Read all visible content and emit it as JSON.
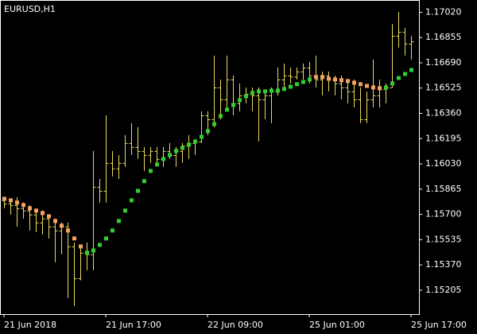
{
  "chart_data": {
    "type": "ohlc",
    "title": "EURUSD,H1",
    "categories": [
      "21 Jun 2018",
      null,
      null,
      null,
      null,
      null,
      null,
      null,
      null,
      null,
      null,
      null,
      null,
      null,
      null,
      null,
      "21 Jun 17:00",
      null,
      null,
      null,
      null,
      null,
      null,
      null,
      null,
      null,
      null,
      null,
      null,
      null,
      null,
      null,
      "22 Jun 09:00",
      null,
      null,
      null,
      null,
      null,
      null,
      null,
      null,
      null,
      null,
      null,
      null,
      null,
      null,
      null,
      "25 Jun 01:00",
      null,
      null,
      null,
      null,
      null,
      null,
      null,
      null,
      null,
      null,
      null,
      null,
      null,
      null,
      null,
      "25 Jun 17:00"
    ],
    "color": "#ead85c",
    "open": [
      1.15792,
      1.15771,
      1.15761,
      1.1574,
      1.15725,
      1.15699,
      1.15647,
      1.15673,
      1.15621,
      1.15595,
      1.15621,
      1.15491,
      1.15283,
      1.1545,
      1.1544,
      1.1588,
      1.15854,
      1.16036,
      1.16,
      1.16036,
      1.16166,
      1.1614,
      1.16114,
      1.16088,
      1.16114,
      1.16062,
      1.16114,
      1.16088,
      1.16114,
      1.1615,
      1.16166,
      1.16176,
      1.16347,
      1.16321,
      1.16529,
      1.16451,
      1.16581,
      1.16425,
      1.16477,
      1.16488,
      1.16477,
      1.16451,
      1.16477,
      1.16503,
      1.16581,
      1.16607,
      1.166,
      1.16633,
      1.16659,
      1.16607,
      1.16581,
      1.16607,
      1.16581,
      1.16555,
      1.16529,
      1.16503,
      1.16451,
      1.16321,
      1.16451,
      1.16477,
      1.16519,
      1.16529,
      1.16866,
      1.16892,
      1.16815
    ],
    "high": [
      1.15813,
      1.15802,
      1.15813,
      1.15777,
      1.15761,
      1.15725,
      1.15725,
      1.15699,
      1.15673,
      1.15647,
      1.15647,
      1.15517,
      1.15491,
      1.15517,
      1.16114,
      1.15932,
      1.16347,
      1.16114,
      1.16088,
      1.16218,
      1.16296,
      1.1627,
      1.1614,
      1.1614,
      1.1614,
      1.1614,
      1.16166,
      1.1614,
      1.16166,
      1.16218,
      1.16192,
      1.16373,
      1.16373,
      1.16737,
      1.16581,
      1.16737,
      1.16607,
      1.16555,
      1.16529,
      1.16529,
      1.16529,
      1.16503,
      1.16529,
      1.16659,
      1.16685,
      1.16659,
      1.16659,
      1.16685,
      1.16695,
      1.16737,
      1.16633,
      1.16633,
      1.16607,
      1.16607,
      1.16581,
      1.16581,
      1.16529,
      1.16503,
      1.16711,
      1.16581,
      1.16555,
      1.16944,
      1.17022,
      1.16918,
      1.16866
    ],
    "low": [
      1.1574,
      1.15699,
      1.15621,
      1.15673,
      1.15595,
      1.15585,
      1.15569,
      1.15543,
      1.15387,
      1.15439,
      1.15154,
      1.15102,
      1.1527,
      1.15335,
      1.15335,
      1.15777,
      1.15777,
      1.15948,
      1.15932,
      1.1601,
      1.16088,
      1.16062,
      1.15984,
      1.16036,
      1.16036,
      1.1601,
      1.16062,
      1.1601,
      1.16036,
      1.16062,
      1.16088,
      1.16166,
      1.16218,
      1.1627,
      1.16321,
      1.16373,
      1.16347,
      1.16373,
      1.16425,
      1.16373,
      1.16176,
      1.16321,
      1.16296,
      1.16477,
      1.16529,
      1.16555,
      1.16581,
      1.16581,
      1.16555,
      1.16529,
      1.16477,
      1.16503,
      1.16477,
      1.16451,
      1.16425,
      1.16399,
      1.16296,
      1.16296,
      1.16399,
      1.16399,
      1.16425,
      1.16529,
      1.16789,
      1.16737,
      1.16711
    ],
    "close": [
      1.15771,
      1.15761,
      1.1574,
      1.15725,
      1.15699,
      1.15647,
      1.15673,
      1.15621,
      1.15595,
      1.15621,
      1.15491,
      1.15283,
      1.1545,
      1.1544,
      1.1588,
      1.15854,
      1.16036,
      1.16,
      1.16036,
      1.16166,
      1.1614,
      1.16114,
      1.16088,
      1.16114,
      1.16062,
      1.16114,
      1.16088,
      1.16114,
      1.1615,
      1.16166,
      1.16176,
      1.16347,
      1.16321,
      1.16529,
      1.16451,
      1.16581,
      1.16425,
      1.16477,
      1.16488,
      1.16477,
      1.16451,
      1.16477,
      1.16503,
      1.16581,
      1.16607,
      1.166,
      1.16633,
      1.16659,
      1.16607,
      1.16581,
      1.16607,
      1.16581,
      1.16555,
      1.16529,
      1.16503,
      1.16451,
      1.16321,
      1.16451,
      1.16477,
      1.16519,
      1.16529,
      1.16866,
      1.16892,
      1.16815,
      1.1683
    ],
    "indicator": {
      "values": [
        1.15802,
        1.15792,
        1.15777,
        1.15761,
        1.1574,
        1.15725,
        1.15709,
        1.15688,
        1.15657,
        1.15626,
        1.15595,
        1.15543,
        1.15491,
        1.1545,
        1.15465,
        1.15501,
        1.15543,
        1.15595,
        1.15657,
        1.15725,
        1.15792,
        1.15854,
        1.15917,
        1.15984,
        1.16026,
        1.16062,
        1.16088,
        1.16114,
        1.16135,
        1.16155,
        1.16176,
        1.16207,
        1.16244,
        1.1629,
        1.16342,
        1.16384,
        1.16415,
        1.16446,
        1.16472,
        1.16493,
        1.16503,
        1.16503,
        1.16508,
        1.16508,
        1.16519,
        1.16534,
        1.1655,
        1.16565,
        1.16581,
        1.16597,
        1.16597,
        1.16586,
        1.16581,
        1.16576,
        1.16571,
        1.1656,
        1.1655,
        1.16539,
        1.16529,
        1.16524,
        1.16529,
        1.16555,
        1.16591,
        1.16617,
        1.16643
      ],
      "colors": [
        "#f4a460",
        "#f4a460",
        "#f4a460",
        "#f4a460",
        "#f4a460",
        "#f4a460",
        "#f4a460",
        "#f4a460",
        "#f4a460",
        "#f4a460",
        "#f4a460",
        "#f4a460",
        "#f4a460",
        "#32cd32",
        "#32cd32",
        "#32cd32",
        "#32cd32",
        "#32cd32",
        "#32cd32",
        "#32cd32",
        "#32cd32",
        "#32cd32",
        "#32cd32",
        "#32cd32",
        "#32cd32",
        "#32cd32",
        "#32cd32",
        "#32cd32",
        "#32cd32",
        "#32cd32",
        "#32cd32",
        "#32cd32",
        "#32cd32",
        "#32cd32",
        "#32cd32",
        "#32cd32",
        "#32cd32",
        "#32cd32",
        "#32cd32",
        "#32cd32",
        "#32cd32",
        "#32cd32",
        "#32cd32",
        "#32cd32",
        "#32cd32",
        "#32cd32",
        "#32cd32",
        "#32cd32",
        "#32cd32",
        "#f4a460",
        "#f4a460",
        "#f4a460",
        "#f4a460",
        "#f4a460",
        "#f4a460",
        "#f4a460",
        "#f4a460",
        "#f4a460",
        "#f4a460",
        "#f4a460",
        "#32cd32",
        "#32cd32",
        "#32cd32",
        "#32cd32",
        "#32cd32"
      ]
    },
    "ylim": [
      1.15049,
      1.171
    ],
    "yticks": [
      {
        "value": 1.1702,
        "label": "1.17020"
      },
      1.16855,
      {
        "value": 1.1669,
        "label": "1.16690"
      },
      1.16525,
      {
        "value": 1.1636,
        "label": "1.16360"
      },
      1.16195,
      {
        "value": 1.1603,
        "label": "1.16030"
      },
      1.15865,
      {
        "value": 1.157,
        "label": "1.15700"
      },
      1.15535,
      {
        "value": 1.1537,
        "label": "1.15370"
      },
      1.15205
    ]
  }
}
